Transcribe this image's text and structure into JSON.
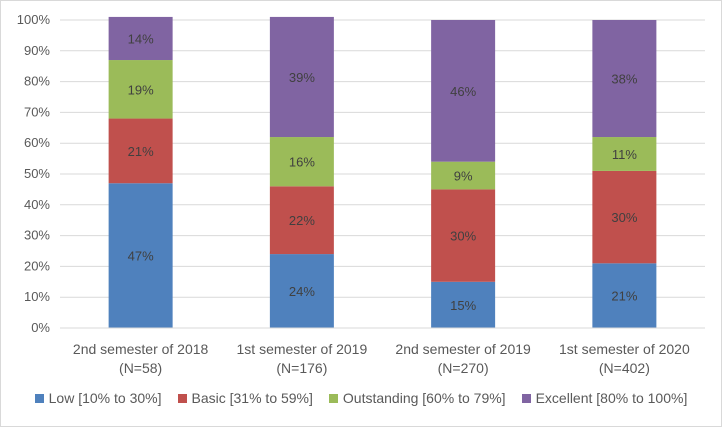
{
  "chart_data": {
    "type": "bar",
    "stacked": true,
    "title": "",
    "xlabel": "",
    "ylabel": "",
    "ylim": [
      0,
      100
    ],
    "y_ticks": [
      "0%",
      "10%",
      "20%",
      "30%",
      "40%",
      "50%",
      "60%",
      "70%",
      "80%",
      "90%",
      "100%"
    ],
    "categories": [
      [
        "2nd semester of 2018",
        "(N=58)"
      ],
      [
        "1st semester of 2019",
        "(N=176)"
      ],
      [
        "2nd semester of 2019",
        "(N=270)"
      ],
      [
        "1st semester of 2020",
        "(N=402)"
      ]
    ],
    "series": [
      {
        "name": "Low [10% to 30%]",
        "color": "#4F81BD",
        "values": [
          47,
          24,
          15,
          21
        ],
        "labels": [
          "47%",
          "24%",
          "15%",
          "21%"
        ]
      },
      {
        "name": "Basic [31% to 59%]",
        "color": "#C0504D",
        "values": [
          21,
          22,
          30,
          30
        ],
        "labels": [
          "21%",
          "22%",
          "30%",
          "30%"
        ]
      },
      {
        "name": "Outstanding [60% to 79%]",
        "color": "#9BBB59",
        "values": [
          19,
          16,
          9,
          11
        ],
        "labels": [
          "19%",
          "16%",
          "9%",
          "11%"
        ]
      },
      {
        "name": "Excellent [80% to 100%]",
        "color": "#8064A2",
        "values": [
          14,
          39,
          46,
          38
        ],
        "labels": [
          "14%",
          "39%",
          "46%",
          "38%"
        ]
      }
    ],
    "legend_position": "bottom",
    "grid": true
  }
}
